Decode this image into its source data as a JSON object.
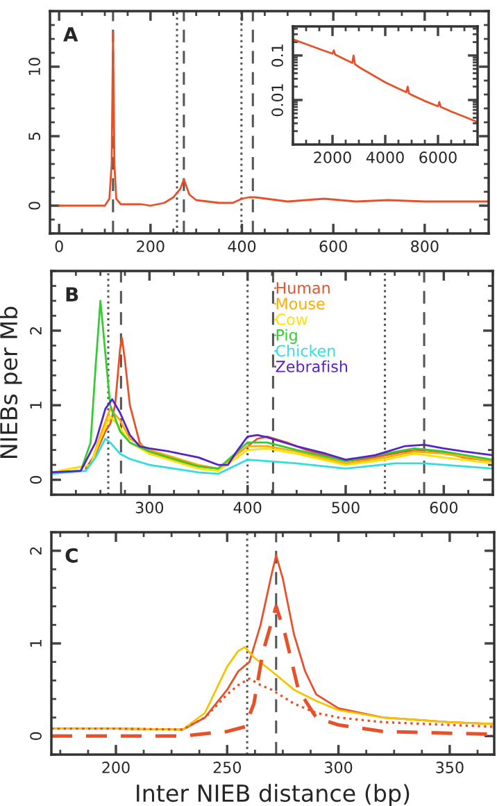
{
  "chart_data": [
    {
      "type": "line",
      "annotations": [
        "A"
      ],
      "xlim": [
        -20,
        940
      ],
      "ylim": [
        -2,
        14
      ],
      "xticks": [
        0,
        200,
        400,
        600,
        800
      ],
      "yticks": [
        0,
        5,
        10
      ],
      "grid": false,
      "legend": false,
      "ref_lines": [
        {
          "axis": "x",
          "value": 118,
          "color": "#555555",
          "line_style": "dashed"
        },
        {
          "axis": "x",
          "value": 258,
          "color": "#555555",
          "line_style": "dotted"
        },
        {
          "axis": "x",
          "value": 273,
          "color": "#555555",
          "line_style": "dashed"
        },
        {
          "axis": "x",
          "value": 399,
          "color": "#555555",
          "line_style": "dotted"
        },
        {
          "axis": "x",
          "value": 424,
          "color": "#555555",
          "line_style": "dashed"
        }
      ],
      "series": [
        {
          "color": "#e8502a",
          "x": [
            0,
            50,
            100,
            110,
            115,
            118,
            121,
            125,
            135,
            180,
            200,
            230,
            250,
            265,
            273,
            285,
            300,
            350,
            380,
            400,
            415,
            430,
            500,
            580,
            650,
            720,
            800,
            940
          ],
          "values": [
            0,
            0,
            0,
            0.5,
            3,
            12.5,
            3,
            0.5,
            0.1,
            0.1,
            0,
            0.2,
            0.6,
            1.2,
            1.9,
            0.8,
            0.4,
            0.2,
            0.2,
            0.5,
            0.6,
            0.6,
            0.3,
            0.5,
            0.3,
            0.4,
            0.3,
            0.3
          ]
        }
      ]
    },
    {
      "type": "line",
      "log": "y",
      "xlim": [
        500,
        7500
      ],
      "ylim": [
        0.001,
        0.45
      ],
      "xticks": [
        2000,
        4000,
        6000
      ],
      "yticks": [
        0.01,
        0.1
      ],
      "grid": false,
      "legend": false,
      "series": [
        {
          "color": "#e8502a",
          "x": [
            500,
            1000,
            1500,
            2000,
            2050,
            2100,
            2500,
            2750,
            2800,
            2850,
            3000,
            3500,
            4000,
            4500,
            4800,
            4850,
            4900,
            5000,
            5500,
            6000,
            6050,
            6100,
            6500,
            7000,
            7500
          ],
          "values": [
            0.23,
            0.18,
            0.14,
            0.11,
            0.13,
            0.105,
            0.08,
            0.068,
            0.1,
            0.064,
            0.055,
            0.037,
            0.025,
            0.018,
            0.015,
            0.02,
            0.014,
            0.013,
            0.0095,
            0.0072,
            0.009,
            0.007,
            0.0055,
            0.0042,
            0.0032
          ]
        }
      ]
    },
    {
      "type": "line",
      "annotations": [
        "B"
      ],
      "ylabel": "NIEBs per Mb",
      "xlim": [
        200,
        650
      ],
      "ylim": [
        -0.2,
        2.8
      ],
      "xticks": [
        300,
        400,
        500,
        600
      ],
      "yticks": [
        0,
        1,
        2
      ],
      "grid": false,
      "legend": "top",
      "ref_lines": [
        {
          "axis": "x",
          "value": 258,
          "color": "#555555",
          "line_style": "dotted"
        },
        {
          "axis": "x",
          "value": 271,
          "color": "#555555",
          "line_style": "dashed"
        },
        {
          "axis": "x",
          "value": 400,
          "color": "#555555",
          "line_style": "dotted"
        },
        {
          "axis": "x",
          "value": 426,
          "color": "#555555",
          "line_style": "dashed"
        },
        {
          "axis": "x",
          "value": 540,
          "color": "#555555",
          "line_style": "dotted"
        },
        {
          "axis": "x",
          "value": 580,
          "color": "#555555",
          "line_style": "dashed"
        }
      ],
      "series": [
        {
          "name": "Human",
          "color": "#e8502a",
          "x": [
            235,
            245,
            250,
            255,
            260,
            265,
            270,
            272,
            275,
            280,
            290,
            300,
            320,
            350,
            370,
            390,
            400,
            410,
            420,
            440,
            460,
            500,
            520,
            540,
            560,
            580,
            600,
            620,
            650
          ],
          "values": [
            0.15,
            0.35,
            0.5,
            0.65,
            0.75,
            1.0,
            1.75,
            1.9,
            1.6,
            1.0,
            0.5,
            0.35,
            0.28,
            0.18,
            0.15,
            0.35,
            0.45,
            0.55,
            0.58,
            0.5,
            0.4,
            0.25,
            0.28,
            0.33,
            0.38,
            0.4,
            0.37,
            0.3,
            0.25
          ]
        },
        {
          "name": "Mouse",
          "color": "#ffaa00",
          "x": [
            200,
            240,
            250,
            260,
            270,
            280,
            300,
            350,
            370,
            400,
            420,
            450,
            500,
            540,
            570,
            600,
            650
          ],
          "values": [
            0.1,
            0.2,
            0.6,
            0.95,
            0.8,
            0.55,
            0.4,
            0.2,
            0.15,
            0.45,
            0.45,
            0.38,
            0.22,
            0.3,
            0.38,
            0.35,
            0.25
          ]
        },
        {
          "name": "Cow",
          "color": "#ffe000",
          "x": [
            200,
            240,
            250,
            260,
            270,
            280,
            300,
            350,
            370,
            400,
            420,
            450,
            500,
            540,
            570,
            600,
            650
          ],
          "values": [
            0.1,
            0.2,
            0.55,
            0.85,
            0.7,
            0.5,
            0.35,
            0.15,
            0.12,
            0.4,
            0.42,
            0.35,
            0.2,
            0.27,
            0.35,
            0.3,
            0.22
          ]
        },
        {
          "name": "Pig",
          "color": "#33cc33",
          "x": [
            200,
            230,
            240,
            245,
            250,
            255,
            260,
            270,
            280,
            300,
            350,
            370,
            400,
            420,
            450,
            500,
            540,
            570,
            600,
            650
          ],
          "values": [
            0.1,
            0.12,
            0.5,
            1.5,
            2.4,
            1.7,
            1.0,
            0.65,
            0.5,
            0.38,
            0.18,
            0.15,
            0.5,
            0.5,
            0.4,
            0.25,
            0.35,
            0.42,
            0.38,
            0.27
          ]
        },
        {
          "name": "Chicken",
          "color": "#33dddd",
          "x": [
            200,
            235,
            245,
            255,
            260,
            270,
            280,
            300,
            350,
            370,
            400,
            420,
            450,
            500,
            550,
            580,
            620,
            650
          ],
          "values": [
            0.08,
            0.12,
            0.3,
            0.55,
            0.5,
            0.35,
            0.28,
            0.2,
            0.1,
            0.08,
            0.27,
            0.25,
            0.22,
            0.15,
            0.22,
            0.22,
            0.18,
            0.15
          ]
        },
        {
          "name": "Zebrafish",
          "color": "#5522cc",
          "x": [
            200,
            230,
            245,
            255,
            262,
            270,
            280,
            290,
            300,
            320,
            350,
            370,
            380,
            390,
            400,
            410,
            420,
            450,
            480,
            500,
            530,
            560,
            580,
            600,
            620,
            650
          ],
          "values": [
            0.1,
            0.12,
            0.5,
            0.95,
            1.08,
            0.9,
            0.6,
            0.45,
            0.42,
            0.38,
            0.3,
            0.2,
            0.2,
            0.4,
            0.58,
            0.6,
            0.57,
            0.45,
            0.35,
            0.27,
            0.33,
            0.45,
            0.47,
            0.42,
            0.38,
            0.33
          ]
        }
      ]
    },
    {
      "type": "line",
      "annotations": [
        "C"
      ],
      "xlabel": "Inter NIEB distance (bp)",
      "xlim": [
        171,
        370
      ],
      "ylim": [
        -0.2,
        2.2
      ],
      "xticks": [
        200,
        250,
        300,
        350
      ],
      "yticks": [
        0,
        1,
        2
      ],
      "grid": false,
      "legend": false,
      "ref_lines": [
        {
          "axis": "x",
          "value": 259,
          "color": "#555555",
          "line_style": "dotted"
        },
        {
          "axis": "x",
          "value": 272,
          "color": "#555555",
          "line_style": "dashed"
        }
      ],
      "series": [
        {
          "color": "#e8502a",
          "line_style": "solid",
          "x": [
            171,
            200,
            230,
            240,
            250,
            255,
            260,
            265,
            270,
            272,
            275,
            280,
            285,
            290,
            300,
            320,
            350,
            370
          ],
          "values": [
            0.08,
            0.08,
            0.07,
            0.2,
            0.5,
            0.7,
            0.8,
            1.2,
            1.75,
            1.95,
            1.7,
            1.1,
            0.7,
            0.45,
            0.3,
            0.2,
            0.15,
            0.13
          ]
        },
        {
          "color": "#f5c400",
          "line_style": "solid",
          "x": [
            171,
            200,
            230,
            240,
            250,
            255,
            258,
            262,
            270,
            280,
            290,
            300,
            320,
            350,
            370
          ],
          "values": [
            0.08,
            0.08,
            0.07,
            0.25,
            0.75,
            0.92,
            0.96,
            0.85,
            0.7,
            0.5,
            0.38,
            0.28,
            0.2,
            0.15,
            0.13
          ]
        },
        {
          "color": "#e8502a",
          "line_style": "dotted",
          "x": [
            171,
            200,
            230,
            240,
            250,
            255,
            260,
            265,
            270,
            280,
            290,
            300,
            320,
            350,
            370
          ],
          "values": [
            0.08,
            0.08,
            0.07,
            0.2,
            0.45,
            0.55,
            0.62,
            0.55,
            0.5,
            0.35,
            0.25,
            0.2,
            0.15,
            0.12,
            0.1
          ]
        },
        {
          "color": "#e8502a",
          "line_style": "dashed",
          "x": [
            171,
            230,
            250,
            258,
            262,
            266,
            272,
            276,
            282,
            290,
            300,
            320,
            350,
            370
          ],
          "values": [
            0,
            0,
            0.05,
            0.1,
            0.35,
            0.9,
            1.4,
            1.1,
            0.5,
            0.2,
            0.12,
            0.05,
            0.03,
            0.02
          ]
        }
      ]
    }
  ]
}
